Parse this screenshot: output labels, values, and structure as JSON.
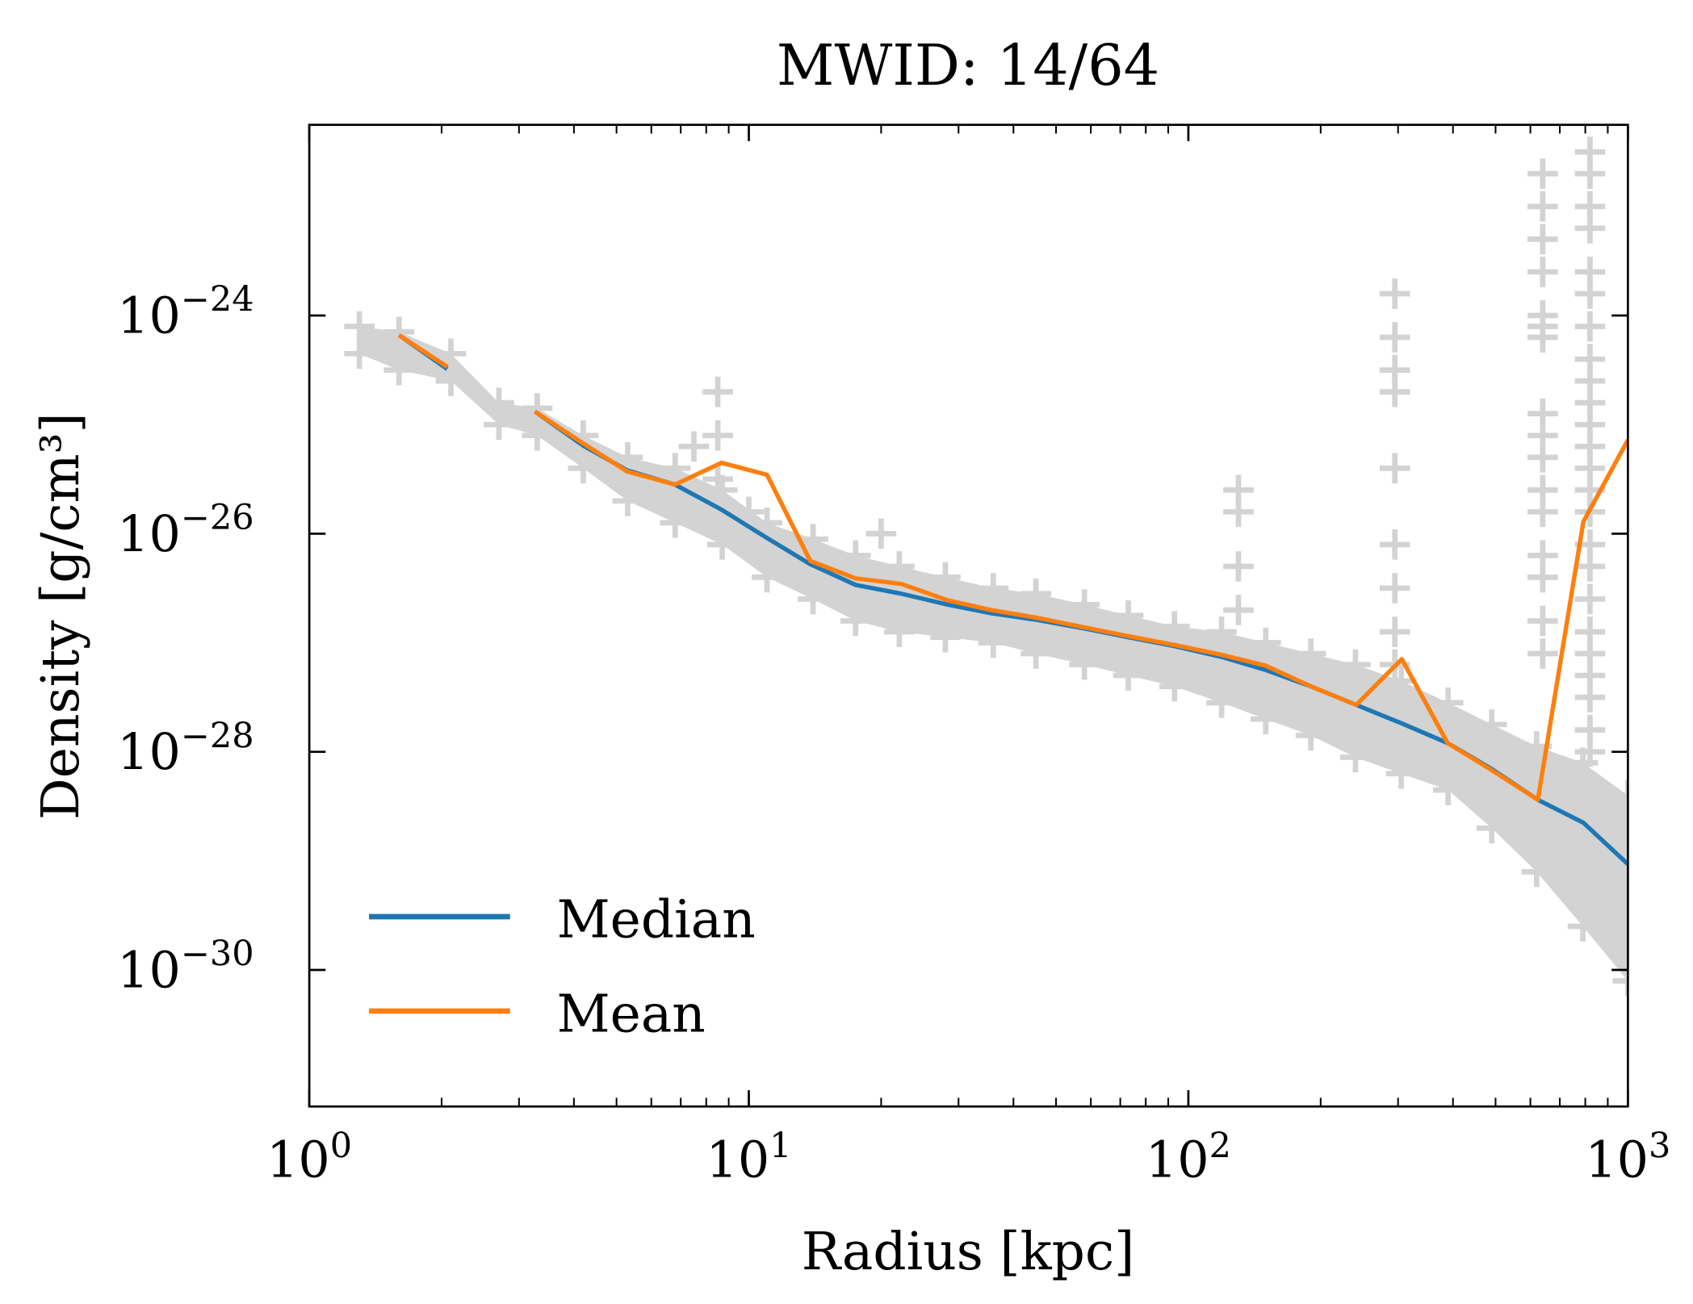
{
  "chart_data": {
    "type": "line",
    "title": "MWID: 14/64",
    "xlabel": "Radius [kpc]",
    "ylabel": "Density [g/cm³]",
    "xscale": "log",
    "yscale": "log",
    "xlim": [
      1,
      1000
    ],
    "ylim": [
      5.6e-32,
      5.6e-23
    ],
    "x_ticks": [
      {
        "base": "10",
        "exp": "0",
        "value": 1
      },
      {
        "base": "10",
        "exp": "1",
        "value": 10
      },
      {
        "base": "10",
        "exp": "2",
        "value": 100
      },
      {
        "base": "10",
        "exp": "3",
        "value": 1000
      }
    ],
    "y_ticks": [
      {
        "base": "10",
        "exp": "−24",
        "value": 1e-24
      },
      {
        "base": "10",
        "exp": "−26",
        "value": 1e-26
      },
      {
        "base": "10",
        "exp": "−28",
        "value": 1e-28
      },
      {
        "base": "10",
        "exp": "−30",
        "value": 1e-30
      }
    ],
    "grid": false,
    "legend": {
      "placement": "lower-left",
      "entries": [
        "Median",
        "Mean"
      ]
    },
    "colors": {
      "median": "#1f77b4",
      "mean": "#ff7f0e",
      "scatter": "#d3d3d3"
    },
    "series": [
      {
        "name": "Median",
        "color": "#1f77b4",
        "segments": [
          {
            "x": [
              1.6,
              2.06
            ],
            "log10_y": [
              -24.18,
              -24.49
            ]
          },
          {
            "x": [
              3.26,
              4.19,
              5.29,
              6.79,
              8.67,
              11.0,
              13.8,
              17.5,
              22.2,
              28.3,
              35.6,
              45.1,
              58.2,
              73.1,
              92.9,
              119,
              150,
              190,
              241,
              306,
              389,
              491,
              624,
              792,
              1000
            ],
            "log10_y": [
              -24.88,
              -25.19,
              -25.42,
              -25.55,
              -25.78,
              -26.04,
              -26.28,
              -26.47,
              -26.55,
              -26.65,
              -26.73,
              -26.79,
              -26.87,
              -26.95,
              -27.03,
              -27.13,
              -27.25,
              -27.4,
              -27.57,
              -27.74,
              -27.92,
              -28.16,
              -28.44,
              -28.65,
              -29.03
            ]
          }
        ]
      },
      {
        "name": "Mean",
        "color": "#ff7f0e",
        "segments": [
          {
            "x": [
              1.6,
              2.06
            ],
            "log10_y": [
              -24.18,
              -24.47
            ]
          },
          {
            "x": [
              3.26,
              4.19,
              5.29,
              6.79,
              8.67,
              11.0,
              13.8,
              17.5,
              22.2,
              28.3,
              35.6,
              45.1,
              58.2,
              73.1,
              92.9,
              119,
              150,
              190,
              241,
              306,
              389,
              491,
              624,
              792,
              1000
            ],
            "log10_y": [
              -24.88,
              -25.17,
              -25.43,
              -25.55,
              -25.35,
              -25.46,
              -26.25,
              -26.41,
              -26.46,
              -26.61,
              -26.7,
              -26.77,
              -26.86,
              -26.94,
              -27.02,
              -27.11,
              -27.21,
              -27.4,
              -27.57,
              -27.15,
              -27.92,
              -28.17,
              -28.44,
              -25.89,
              -25.14
            ]
          }
        ]
      }
    ],
    "scatter": {
      "marker": "+",
      "envelope": {
        "x": [
          1.3,
          1.6,
          2.1,
          2.7,
          3.3,
          4.2,
          5.3,
          6.8,
          8.7,
          11,
          14,
          17.5,
          22,
          28,
          36,
          45,
          58,
          73,
          93,
          119,
          150,
          190,
          240,
          305,
          390,
          490,
          620,
          790,
          1000
        ],
        "log10_upper": [
          -24.1,
          -24.15,
          -24.35,
          -24.8,
          -24.85,
          -25.1,
          -25.3,
          -25.4,
          -25.6,
          -25.9,
          -26.05,
          -26.2,
          -26.3,
          -26.4,
          -26.5,
          -26.55,
          -26.65,
          -26.75,
          -26.85,
          -26.9,
          -27.0,
          -27.1,
          -27.2,
          -27.35,
          -27.55,
          -27.75,
          -27.95,
          -28.1,
          -28.4
        ],
        "log10_lower": [
          -24.35,
          -24.5,
          -24.6,
          -25.0,
          -25.1,
          -25.4,
          -25.7,
          -25.9,
          -26.1,
          -26.4,
          -26.6,
          -26.8,
          -26.9,
          -26.95,
          -27.0,
          -27.1,
          -27.2,
          -27.3,
          -27.4,
          -27.55,
          -27.7,
          -27.85,
          -28.05,
          -28.2,
          -28.35,
          -28.7,
          -29.1,
          -29.6,
          -30.1
        ]
      },
      "outliers": [
        {
          "x": 8.5,
          "log10_y": [
            -24.7,
            -25.1,
            -25.5
          ]
        },
        {
          "x": 7.5,
          "log10_y": [
            -25.2
          ]
        },
        {
          "x": 10,
          "log10_y": [
            -25.8
          ]
        },
        {
          "x": 20,
          "log10_y": [
            -26.0
          ]
        },
        {
          "x": 130,
          "log10_y": [
            -25.6,
            -25.8,
            -26.3,
            -26.7
          ]
        },
        {
          "x": 295,
          "log10_y": [
            -23.8,
            -24.2,
            -24.5,
            -24.7,
            -25.4,
            -26.1,
            -26.5,
            -26.9,
            -27.2
          ]
        },
        {
          "x": 640,
          "log10_y": [
            -22.7,
            -23.0,
            -23.3,
            -23.6,
            -24.0,
            -24.1,
            -24.2,
            -24.9,
            -25.1,
            -25.3,
            -25.6,
            -25.8,
            -26.2,
            -26.4,
            -26.8,
            -27.1
          ]
        },
        {
          "x": 820,
          "log10_y": [
            -22.5,
            -22.7,
            -23.0,
            -23.2,
            -23.6,
            -23.8,
            -24.1,
            -24.4,
            -24.6,
            -24.8,
            -25.0,
            -25.2,
            -25.4,
            -25.6,
            -25.8,
            -26.1,
            -26.3,
            -26.6,
            -26.9,
            -27.1,
            -27.3,
            -27.5,
            -27.8,
            -28.0
          ]
        }
      ]
    }
  }
}
